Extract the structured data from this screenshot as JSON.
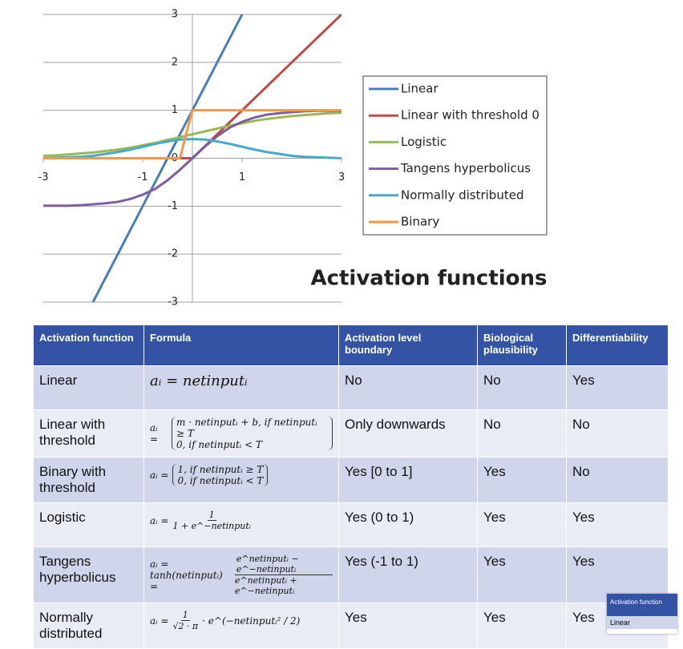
{
  "chart_data": {
    "type": "line",
    "title": "Activation functions",
    "x": [
      -3,
      -2.75,
      -2.5,
      -2.25,
      -2,
      -1.75,
      -1.5,
      -1.25,
      -1,
      -0.75,
      -0.5,
      -0.25,
      0,
      0.25,
      0.5,
      0.75,
      1,
      1.25,
      1.5,
      1.75,
      2,
      2.25,
      2.5,
      2.75,
      3
    ],
    "series": [
      {
        "name": "Linear",
        "color": "#4a7ebb",
        "values": [
          null,
          null,
          null,
          null,
          -3,
          -2.5,
          -2,
          -1.5,
          -1,
          -0.5,
          0,
          0.5,
          1,
          1.5,
          2,
          2.5,
          3,
          null,
          null,
          null,
          null,
          null,
          null,
          null,
          null
        ]
      },
      {
        "name": "Linear with threshold 0",
        "color": "#be4b48",
        "values": [
          0,
          0,
          0,
          0,
          0,
          0,
          0,
          0,
          0,
          0,
          0,
          0,
          0,
          0.25,
          0.5,
          0.75,
          1,
          1.25,
          1.5,
          1.75,
          2,
          2.25,
          2.5,
          2.75,
          3
        ]
      },
      {
        "name": "Logistic",
        "color": "#98b954",
        "values": [
          0.05,
          0.06,
          0.08,
          0.1,
          0.12,
          0.15,
          0.18,
          0.22,
          0.27,
          0.32,
          0.38,
          0.44,
          0.5,
          0.56,
          0.62,
          0.68,
          0.73,
          0.78,
          0.82,
          0.85,
          0.88,
          0.9,
          0.92,
          0.94,
          0.95
        ]
      },
      {
        "name": "Tangens hyperbolicus",
        "color": "#7d5fa0",
        "values": [
          -0.99,
          -0.99,
          -0.99,
          -0.98,
          -0.96,
          -0.94,
          -0.91,
          -0.85,
          -0.76,
          -0.64,
          -0.46,
          -0.24,
          0,
          0.24,
          0.46,
          0.64,
          0.76,
          0.85,
          0.91,
          0.94,
          0.96,
          0.98,
          0.99,
          0.99,
          0.99
        ]
      },
      {
        "name": "Normally distributed",
        "color": "#46aac5",
        "values": [
          0,
          0.01,
          0.02,
          0.03,
          0.05,
          0.09,
          0.13,
          0.18,
          0.24,
          0.3,
          0.35,
          0.39,
          0.4,
          0.39,
          0.35,
          0.3,
          0.24,
          0.18,
          0.13,
          0.09,
          0.05,
          0.03,
          0.02,
          0.01,
          0
        ]
      },
      {
        "name": "Binary",
        "color": "#f79646",
        "values": [
          0,
          0,
          0,
          0,
          0,
          0,
          0,
          0,
          0,
          0,
          0,
          0,
          1,
          1,
          1,
          1,
          1,
          1,
          1,
          1,
          1,
          1,
          1,
          1,
          1
        ]
      }
    ],
    "xlim": [
      -3,
      3
    ],
    "xticks": [
      -3,
      -1,
      1,
      3
    ],
    "ylim": [
      -3,
      3
    ],
    "yticks": [
      -3,
      -2,
      -1,
      0,
      1,
      2,
      3
    ],
    "grid": true
  },
  "table": {
    "header": [
      "Activation function",
      "Formula",
      "Activation level boundary",
      "Biological plausibility",
      "Differentiability"
    ],
    "rows": [
      [
        "Linear",
        "aᵢ = netinputᵢ",
        "No",
        "No",
        "Yes"
      ],
      [
        "Linear with threshold",
        {
          "lhs": "aᵢ =",
          "cases": [
            "m · netinputᵢ + b, if netinputᵢ ≥ T",
            "0, if netinputᵢ < T"
          ]
        },
        "Only downwards",
        "No",
        "No"
      ],
      [
        "Binary with threshold",
        {
          "lhs": "aᵢ =",
          "cases": [
            "1, if netinputᵢ ≥ T",
            "0, if netinputᵢ < T"
          ]
        },
        "Yes [0 to 1]",
        "Yes",
        "No"
      ],
      [
        "Logistic",
        {
          "lhs": "aᵢ =",
          "num": "1",
          "den": "1 + e^−netinputᵢ"
        },
        "Yes (0 to 1)",
        "Yes",
        "Yes"
      ],
      [
        "Tangens hyperbolicus",
        {
          "lhs": "aᵢ = tanh(netinputᵢ) =",
          "num": "e^netinputᵢ − e^−netinputᵢ",
          "den": "e^netinputᵢ + e^−netinputᵢ"
        },
        "Yes (-1 to 1)",
        "Yes",
        "Yes"
      ],
      [
        "Normally distributed",
        {
          "lhs": "aᵢ =",
          "num": "1",
          "den": "√2 · π",
          "tail": "· e^(−netinputᵢ² / 2)"
        },
        "Yes",
        "Yes",
        "Yes"
      ]
    ]
  },
  "thumbnail": {
    "header": "Activation function",
    "row": "Linear"
  }
}
